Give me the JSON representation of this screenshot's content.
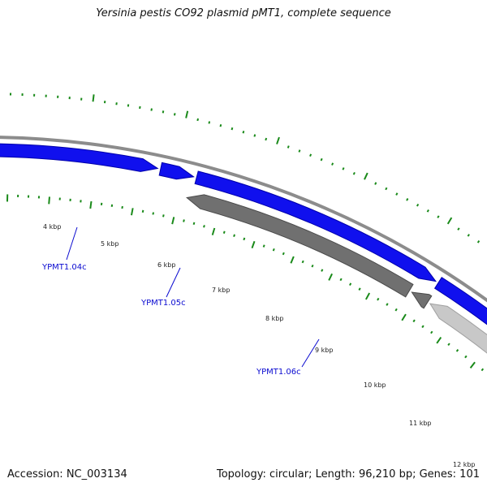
{
  "title": "Yersinia pestis CO92 plasmid pMT1, complete sequence",
  "footer": {
    "accession": "Accession: NC_003134",
    "summary": "Topology: circular; Length: 96,210 bp; Genes: 101"
  },
  "colors": {
    "backbone": "#8c8c8c",
    "forward_gene": "#1010ee",
    "forward_gene_edge": "#0000aa",
    "reverse_gene": "#707070",
    "reverse_gene_edge": "#4a4a4a",
    "gene_label": "#0a0ad0",
    "tick_marks": "#1a8a1a"
  },
  "scale_ticks": [
    {
      "kbp": 4,
      "label": "4 kbp"
    },
    {
      "kbp": 5,
      "label": "5 kbp"
    },
    {
      "kbp": 6,
      "label": "6 kbp"
    },
    {
      "kbp": 7,
      "label": "7 kbp"
    },
    {
      "kbp": 8,
      "label": "8 kbp"
    },
    {
      "kbp": 9,
      "label": "9 kbp"
    },
    {
      "kbp": 10,
      "label": "10 kbp"
    },
    {
      "kbp": 11,
      "label": "11 kbp"
    },
    {
      "kbp": 12,
      "label": "12 kbp"
    }
  ],
  "gene_labels": [
    {
      "label": "YPMT1.04c"
    },
    {
      "label": "YPMT1.05c"
    },
    {
      "label": "YPMT1.06c"
    }
  ]
}
